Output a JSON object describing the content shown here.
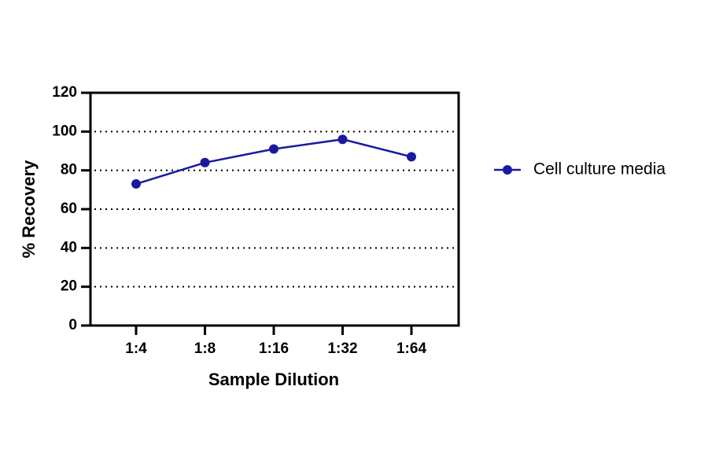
{
  "chart_data": {
    "type": "line",
    "x_label": "Sample Dilution",
    "y_label": "% Recovery",
    "categories": [
      "1:4",
      "1:8",
      "1:16",
      "1:32",
      "1:64"
    ],
    "series": [
      {
        "name": "Cell culture media",
        "color": "#1a1aa0",
        "values": [
          73,
          84,
          91,
          96,
          87
        ]
      }
    ],
    "ylim": [
      0,
      120
    ],
    "yticks": [
      0,
      20,
      40,
      60,
      80,
      100,
      120
    ],
    "grid": true,
    "legend": "right"
  }
}
